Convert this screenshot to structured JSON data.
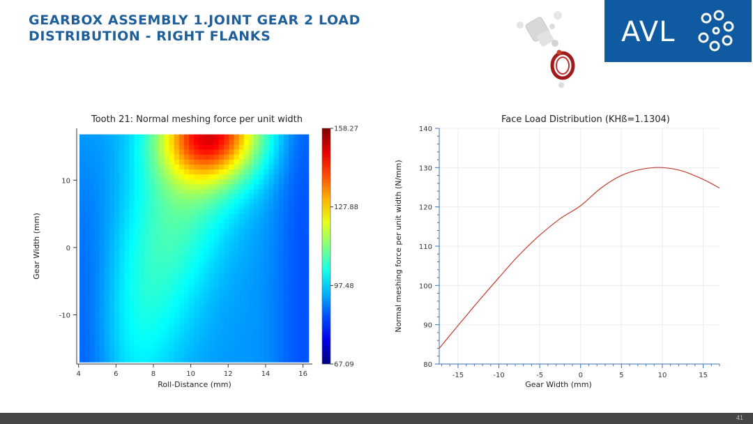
{
  "slide": {
    "title_line1": "GEARBOX ASSEMBLY 1.JOINT GEAR 2 LOAD",
    "title_line2": "DISTRIBUTION - RIGHT FLANKS",
    "page_number": "41"
  },
  "logo": {
    "text": "AVL",
    "color": "#0f5aa0"
  },
  "chart_data": [
    {
      "type": "heatmap",
      "title": "Tooth 21: Normal meshing force per unit width",
      "xlabel": "Roll-Distance (mm)",
      "ylabel": "Gear Width (mm)",
      "xlim": [
        3.9,
        16.5
      ],
      "ylim": [
        -17.3,
        17.7
      ],
      "x_ticks": [
        4,
        6,
        8,
        10,
        12,
        14,
        16
      ],
      "y_ticks": [
        -10,
        0,
        10
      ],
      "colorbar": {
        "min": 67.09,
        "max": 158.27,
        "labels": [
          "158.27",
          "127.88",
          "97.48",
          "67.09"
        ],
        "label_values": [
          158.27,
          127.88,
          97.48,
          67.09
        ],
        "colormap": "jet"
      },
      "peak": {
        "x": 11,
        "y": 16.5,
        "value": 158.27
      }
    },
    {
      "type": "line",
      "title": "Face Load Distribution (KHß=1.1304)",
      "xlabel": "Gear Width (mm)",
      "ylabel": "Normal meshing force per unit width (N/mm)",
      "xlim": [
        -17.3,
        17
      ],
      "ylim": [
        80,
        140
      ],
      "x_ticks": [
        -15,
        -10,
        -5,
        0,
        5,
        10,
        15
      ],
      "y_ticks": [
        80,
        90,
        100,
        110,
        120,
        130,
        140
      ],
      "line_color": "#c0392b",
      "grid": true,
      "series": [
        {
          "x": [
            -17.3,
            -15,
            -12.5,
            -10,
            -7.5,
            -5,
            -2.5,
            0,
            2.5,
            5,
            7.5,
            10,
            12.5,
            15,
            17
          ],
          "y": [
            84,
            89.8,
            96,
            102,
            107.8,
            112.8,
            117,
            120.3,
            124.8,
            128,
            129.6,
            130,
            129.1,
            127,
            124.8
          ]
        }
      ]
    }
  ]
}
